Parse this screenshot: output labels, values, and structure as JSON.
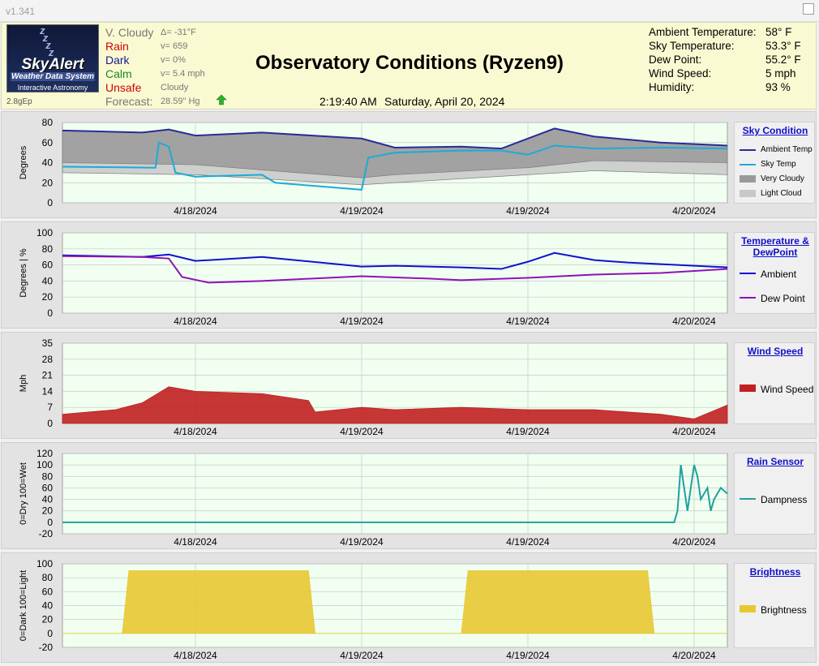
{
  "app": {
    "version": "v1.341",
    "title": "Observatory Conditions (Ryzen9)",
    "build": "2.8gEp"
  },
  "logo": {
    "name": "SkyAlert",
    "tagline": "Weather Data System",
    "sub": "Interactive Astronomy"
  },
  "status": {
    "sky": {
      "label": "V. Cloudy",
      "detail": "Δ= -31°F"
    },
    "rain": {
      "label": "Rain",
      "detail": "v= 659",
      "color": "#d40000"
    },
    "dark": {
      "label": "Dark",
      "detail": "v= 0%",
      "color": "#1a1a8a"
    },
    "wind": {
      "label": "Calm",
      "detail": "v= 5.4 mph",
      "color": "#1a8a1a"
    },
    "safety": {
      "label": "Unsafe",
      "detail": "Cloudy",
      "color": "#d40000"
    },
    "forecast": {
      "label": "Forecast:",
      "detail": "28.59\" Hg",
      "icon": "up-arrow-icon"
    }
  },
  "clock": {
    "time": "2:19:40 AM",
    "date": "Saturday, April 20, 2024"
  },
  "readings": [
    {
      "label": "Ambient Temperature:",
      "value": "58° F"
    },
    {
      "label": "Sky Temperature:",
      "value": "53.3° F"
    },
    {
      "label": "Dew Point:",
      "value": "55.2° F"
    },
    {
      "label": "Wind Speed:",
      "value": "5 mph"
    },
    {
      "label": "Humidity:",
      "value": "93 %"
    }
  ],
  "x_dates": [
    "4/18/2024",
    "4/19/2024",
    "4/19/2024",
    "4/20/2024"
  ],
  "chart_data": [
    {
      "type": "line",
      "ylabel": "Degrees",
      "ylim": [
        0,
        80
      ],
      "yticks": [
        0,
        20,
        40,
        60,
        80
      ],
      "legend_title": "Sky Condition",
      "series": [
        {
          "name": "Ambient Temp",
          "color": "#2a2a9a",
          "x": [
            0,
            0.12,
            0.16,
            0.2,
            0.3,
            0.45,
            0.5,
            0.6,
            0.66,
            0.7,
            0.74,
            0.8,
            0.85,
            0.9,
            1
          ],
          "y": [
            72,
            70,
            73,
            67,
            70,
            64,
            55,
            56,
            54,
            64,
            74,
            66,
            63,
            60,
            57
          ]
        },
        {
          "name": "Sky Temp",
          "color": "#1eaad8",
          "x": [
            0,
            0.14,
            0.145,
            0.16,
            0.17,
            0.2,
            0.3,
            0.32,
            0.45,
            0.46,
            0.5,
            0.6,
            0.66,
            0.7,
            0.74,
            0.8,
            0.9,
            1
          ],
          "y": [
            36,
            35,
            60,
            56,
            30,
            26,
            28,
            20,
            13,
            45,
            50,
            52,
            52,
            48,
            57,
            54,
            55,
            54
          ]
        },
        {
          "name": "Very Cloudy",
          "color": "#9a9a9a",
          "x": [
            0,
            0.2,
            0.45,
            0.5,
            0.7,
            0.8,
            1
          ],
          "y": [
            40,
            38,
            25,
            28,
            35,
            42,
            40
          ]
        },
        {
          "name": "Light Cloud",
          "color": "#c8c8c8",
          "x": [
            0,
            0.2,
            0.45,
            0.5,
            0.7,
            0.8,
            1
          ],
          "y": [
            30,
            28,
            18,
            20,
            28,
            32,
            28
          ]
        }
      ]
    },
    {
      "type": "line",
      "ylabel": "Degrees | %",
      "ylim": [
        0,
        100
      ],
      "yticks": [
        0,
        20,
        40,
        60,
        80,
        100
      ],
      "legend_title": "Temperature & DewPoint",
      "series": [
        {
          "name": "Ambient",
          "color": "#1010d0",
          "x": [
            0,
            0.12,
            0.16,
            0.2,
            0.3,
            0.45,
            0.5,
            0.6,
            0.66,
            0.7,
            0.74,
            0.8,
            0.85,
            0.9,
            1
          ],
          "y": [
            72,
            70,
            73,
            65,
            70,
            58,
            59,
            57,
            55,
            64,
            75,
            66,
            63,
            61,
            57
          ]
        },
        {
          "name": "Dew Point",
          "color": "#9010b8",
          "x": [
            0,
            0.12,
            0.16,
            0.18,
            0.22,
            0.3,
            0.45,
            0.55,
            0.6,
            0.7,
            0.8,
            0.9,
            1
          ],
          "y": [
            71,
            70,
            68,
            45,
            38,
            40,
            46,
            43,
            41,
            44,
            48,
            50,
            55
          ]
        }
      ]
    },
    {
      "type": "area",
      "ylabel": "Mph",
      "ylim": [
        0,
        35
      ],
      "yticks": [
        0,
        7,
        14,
        21,
        28,
        35
      ],
      "legend_title": "Wind Speed",
      "series": [
        {
          "name": "Wind Speed",
          "color": "#c02020",
          "x": [
            0,
            0.08,
            0.12,
            0.16,
            0.2,
            0.3,
            0.37,
            0.38,
            0.45,
            0.5,
            0.6,
            0.7,
            0.8,
            0.9,
            0.95,
            1
          ],
          "y": [
            4,
            6,
            9,
            16,
            14,
            13,
            10,
            5,
            7,
            6,
            7,
            6,
            6,
            4,
            2,
            8
          ]
        }
      ]
    },
    {
      "type": "line",
      "ylabel": "0=Dry 100=Wet",
      "ylim": [
        -20,
        120
      ],
      "yticks": [
        -20,
        0,
        20,
        40,
        60,
        80,
        100,
        120
      ],
      "legend_title": "Rain Sensor",
      "series": [
        {
          "name": "Dampness",
          "color": "#20a0a0",
          "x": [
            0,
            0.92,
            0.925,
            0.93,
            0.935,
            0.94,
            0.95,
            0.955,
            0.96,
            0.97,
            0.975,
            0.98,
            0.99,
            1
          ],
          "y": [
            0,
            0,
            20,
            100,
            60,
            20,
            100,
            80,
            40,
            60,
            20,
            40,
            60,
            50
          ]
        }
      ]
    },
    {
      "type": "area",
      "ylabel": "0=Dark 100=Light",
      "ylim": [
        -20,
        100
      ],
      "yticks": [
        -20,
        0,
        20,
        40,
        60,
        80,
        100
      ],
      "legend_title": "Brightness",
      "series": [
        {
          "name": "Brightness",
          "color": "#e8c832",
          "x": [
            0,
            0.09,
            0.1,
            0.37,
            0.38,
            0.6,
            0.61,
            0.88,
            0.89,
            1
          ],
          "y": [
            0,
            0,
            90,
            90,
            0,
            0,
            90,
            90,
            0,
            0
          ]
        }
      ]
    }
  ]
}
